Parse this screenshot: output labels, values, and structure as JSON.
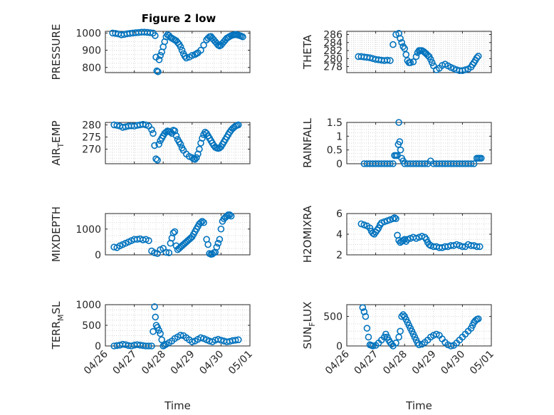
{
  "figure_title": "Figure 2 low",
  "x_axis_label": "Time",
  "x_tick_labels": [
    "04/26",
    "04/27",
    "04/28",
    "04/29",
    "04/30",
    "05/01"
  ],
  "marker_color": "#0072BD",
  "chart_data": [
    {
      "id": "pressure",
      "type": "scatter",
      "title": "Figure 2 low",
      "ylabel": [
        "PRESSURE"
      ],
      "xlabel": "",
      "xlim": [
        0,
        5
      ],
      "ylim": [
        770,
        1010
      ],
      "yticks": [
        800,
        900,
        1000
      ],
      "ytick_labels": [
        "800",
        "900",
        "1000"
      ],
      "x": [
        0.25,
        0.35,
        0.45,
        0.55,
        0.65,
        0.75,
        0.85,
        0.95,
        1.05,
        1.15,
        1.25,
        1.35,
        1.45,
        1.55,
        1.65,
        1.72,
        1.75,
        1.78,
        1.82,
        1.86,
        1.9,
        1.95,
        2.0,
        2.05,
        2.1,
        2.15,
        2.2,
        2.25,
        2.3,
        2.35,
        2.4,
        2.45,
        2.5,
        2.55,
        2.6,
        2.65,
        2.7,
        2.75,
        2.8,
        2.9,
        3.0,
        3.1,
        3.15,
        3.2,
        3.3,
        3.4,
        3.5,
        3.55,
        3.6,
        3.65,
        3.7,
        3.75,
        3.8,
        3.85,
        3.9,
        3.95,
        4.0,
        4.05,
        4.1,
        4.15,
        4.2,
        4.25,
        4.3,
        4.35,
        4.4,
        4.45,
        4.5,
        4.55,
        4.6,
        4.65,
        4.7,
        4.75
      ],
      "y": [
        1000,
        998,
        995,
        990,
        992,
        996,
        998,
        1000,
        1002,
        1003,
        1005,
        1005,
        1004,
        1002,
        1000,
        985,
        860,
        780,
        775,
        845,
        870,
        890,
        920,
        950,
        978,
        990,
        985,
        975,
        970,
        965,
        960,
        955,
        945,
        935,
        920,
        900,
        880,
        865,
        855,
        860,
        870,
        875,
        880,
        885,
        900,
        930,
        960,
        970,
        978,
        980,
        970,
        960,
        950,
        940,
        930,
        925,
        930,
        940,
        950,
        960,
        970,
        975,
        980,
        985,
        988,
        990,
        992,
        990,
        988,
        985,
        982,
        978
      ]
    },
    {
      "id": "theta",
      "type": "scatter",
      "title": "",
      "ylabel": [
        "THETA"
      ],
      "xlabel": "",
      "xlim": [
        0,
        5
      ],
      "ylim": [
        276.5,
        286.8
      ],
      "yticks": [
        278,
        280,
        282,
        284,
        286
      ],
      "ytick_labels": [
        "278",
        "280",
        "282",
        "284",
        "286"
      ],
      "x": [
        0.4,
        0.5,
        0.6,
        0.7,
        0.8,
        0.9,
        1.0,
        1.1,
        1.2,
        1.3,
        1.4,
        1.5,
        1.6,
        1.7,
        1.8,
        1.85,
        1.9,
        1.95,
        2.0,
        2.05,
        2.1,
        2.15,
        2.2,
        2.3,
        2.4,
        2.45,
        2.5,
        2.55,
        2.6,
        2.65,
        2.7,
        2.75,
        2.8,
        2.85,
        2.9,
        2.95,
        3.0,
        3.1,
        3.2,
        3.3,
        3.4,
        3.5,
        3.6,
        3.7,
        3.8,
        3.9,
        4.0,
        4.1,
        4.2,
        4.3,
        4.35,
        4.4,
        4.45,
        4.5,
        4.55
      ],
      "y": [
        280.5,
        280.5,
        280.4,
        280.3,
        280.2,
        280.0,
        279.8,
        279.7,
        279.6,
        279.5,
        279.6,
        279.5,
        283.5,
        286.0,
        286.3,
        285.0,
        284.0,
        283.0,
        282.5,
        281.0,
        279.5,
        279.0,
        279.0,
        279.2,
        280.5,
        281.5,
        282.0,
        282.0,
        282.0,
        281.8,
        281.5,
        281.2,
        280.8,
        280.5,
        279.8,
        279.0,
        278.2,
        277.2,
        277.6,
        278.3,
        278.6,
        278.2,
        277.8,
        277.5,
        277.2,
        277.0,
        277.0,
        277.2,
        277.4,
        277.9,
        278.5,
        279.0,
        279.6,
        280.2,
        280.6
      ]
    },
    {
      "id": "air_temp",
      "type": "scatter",
      "title": "",
      "ylabel": [
        "AIR",
        "T",
        "EMP"
      ],
      "xlabel": "",
      "xlim": [
        0,
        5
      ],
      "ylim": [
        264,
        281
      ],
      "yticks": [
        270,
        275,
        280
      ],
      "ytick_labels": [
        "270",
        "275",
        "280"
      ],
      "x": [
        0.3,
        0.4,
        0.5,
        0.6,
        0.7,
        0.8,
        0.9,
        1.0,
        1.1,
        1.2,
        1.3,
        1.4,
        1.5,
        1.6,
        1.65,
        1.7,
        1.75,
        1.8,
        1.85,
        1.9,
        1.95,
        2.0,
        2.05,
        2.1,
        2.15,
        2.2,
        2.25,
        2.3,
        2.35,
        2.4,
        2.45,
        2.5,
        2.55,
        2.6,
        2.65,
        2.7,
        2.8,
        2.9,
        3.0,
        3.05,
        3.1,
        3.15,
        3.2,
        3.25,
        3.3,
        3.35,
        3.4,
        3.45,
        3.5,
        3.55,
        3.6,
        3.65,
        3.7,
        3.75,
        3.8,
        3.85,
        3.9,
        3.95,
        4.0,
        4.05,
        4.1,
        4.15,
        4.2,
        4.25,
        4.3,
        4.35,
        4.4,
        4.45,
        4.5,
        4.55,
        4.6
      ],
      "y": [
        280.0,
        279.8,
        279.5,
        279.0,
        279.2,
        279.5,
        279.6,
        279.5,
        279.8,
        280.0,
        280.2,
        280.0,
        279.5,
        278.0,
        276.5,
        271.5,
        266.0,
        265.5,
        272.0,
        273.5,
        274.5,
        275.5,
        276.5,
        277.0,
        277.5,
        277.3,
        277.0,
        276.5,
        277.8,
        277.5,
        275.5,
        274.0,
        273.0,
        272.0,
        270.5,
        269.5,
        268.0,
        267.0,
        266.5,
        266.0,
        265.8,
        266.5,
        268.0,
        270.0,
        272.5,
        274.5,
        276.0,
        277.0,
        276.5,
        275.5,
        274.5,
        273.5,
        272.5,
        271.5,
        270.8,
        270.5,
        270.3,
        270.5,
        271.0,
        272.0,
        273.0,
        274.0,
        275.0,
        276.0,
        277.0,
        277.8,
        278.5,
        279.0,
        279.5,
        279.8,
        280.0
      ]
    },
    {
      "id": "rainfall",
      "type": "scatter",
      "title": "",
      "ylabel": [
        "RAINFALL"
      ],
      "xlabel": "",
      "xlim": [
        0,
        5
      ],
      "ylim": [
        0,
        1.5
      ],
      "yticks": [
        0,
        0.5,
        1,
        1.5
      ],
      "ytick_labels": [
        "0",
        "0.5",
        "1",
        "1.5"
      ],
      "x": [
        0.6,
        0.7,
        0.8,
        0.9,
        1.0,
        1.1,
        1.2,
        1.3,
        1.4,
        1.5,
        1.6,
        1.65,
        1.7,
        1.75,
        1.78,
        1.8,
        1.83,
        1.86,
        1.9,
        1.95,
        2.0,
        2.1,
        2.2,
        2.3,
        2.4,
        2.5,
        2.6,
        2.7,
        2.8,
        2.9,
        3.0,
        3.1,
        3.2,
        3.3,
        3.4,
        3.5,
        3.6,
        3.7,
        3.8,
        3.9,
        4.0,
        4.1,
        4.2,
        4.3,
        4.4,
        4.5,
        4.55,
        4.6,
        4.65
      ],
      "y": [
        0,
        0,
        0,
        0,
        0,
        0,
        0,
        0,
        0,
        0,
        0,
        0.3,
        0.3,
        0.3,
        0.7,
        1.5,
        0.8,
        0.5,
        0.2,
        0.1,
        0,
        0,
        0,
        0,
        0,
        0,
        0,
        0,
        0,
        0.1,
        0,
        0,
        0,
        0,
        0,
        0,
        0,
        0,
        0,
        0,
        0,
        0,
        0,
        0,
        0,
        0.2,
        0.2,
        0.2,
        0.2
      ]
    },
    {
      "id": "mixdepth",
      "type": "scatter",
      "title": "",
      "ylabel": [
        "MIXDEPTH"
      ],
      "xlabel": "",
      "xlim": [
        0,
        5
      ],
      "ylim": [
        0,
        1600
      ],
      "yticks": [
        0,
        1000
      ],
      "ytick_labels": [
        "0",
        "1000"
      ],
      "x": [
        0.3,
        0.4,
        0.5,
        0.6,
        0.7,
        0.8,
        0.9,
        1.0,
        1.1,
        1.2,
        1.3,
        1.4,
        1.5,
        1.6,
        1.7,
        1.8,
        1.9,
        2.0,
        2.1,
        2.2,
        2.25,
        2.3,
        2.35,
        2.4,
        2.45,
        2.5,
        2.55,
        2.6,
        2.65,
        2.7,
        2.75,
        2.8,
        2.85,
        2.9,
        2.95,
        3.0,
        3.05,
        3.1,
        3.15,
        3.2,
        3.25,
        3.3,
        3.35,
        3.4,
        3.5,
        3.55,
        3.6,
        3.65,
        3.7,
        3.75,
        3.8,
        3.85,
        3.9,
        3.95,
        4.0,
        4.05,
        4.1,
        4.15,
        4.2,
        4.25,
        4.3,
        4.35
      ],
      "y": [
        300,
        280,
        350,
        400,
        450,
        500,
        550,
        600,
        600,
        620,
        580,
        600,
        550,
        150,
        80,
        50,
        200,
        250,
        100,
        80,
        450,
        650,
        850,
        900,
        350,
        200,
        250,
        300,
        350,
        400,
        450,
        500,
        550,
        600,
        650,
        700,
        800,
        900,
        1000,
        1100,
        1200,
        1250,
        1300,
        1250,
        600,
        400,
        50,
        20,
        30,
        80,
        100,
        300,
        450,
        600,
        1000,
        1300,
        1400,
        1450,
        1500,
        1550,
        1550,
        1500
      ]
    },
    {
      "id": "h2omixra",
      "type": "scatter",
      "title": "",
      "ylabel": [
        "H2OMIXRA"
      ],
      "xlabel": "",
      "xlim": [
        0,
        5
      ],
      "ylim": [
        2,
        6
      ],
      "yticks": [
        2,
        4,
        6
      ],
      "ytick_labels": [
        "2",
        "4",
        "6"
      ],
      "x": [
        0.5,
        0.6,
        0.7,
        0.8,
        0.85,
        0.9,
        0.95,
        1.0,
        1.05,
        1.1,
        1.15,
        1.2,
        1.3,
        1.4,
        1.5,
        1.6,
        1.65,
        1.7,
        1.75,
        1.8,
        1.85,
        1.9,
        1.95,
        2.0,
        2.05,
        2.1,
        2.2,
        2.3,
        2.4,
        2.5,
        2.6,
        2.7,
        2.75,
        2.8,
        2.85,
        2.9,
        3.0,
        3.1,
        3.2,
        3.3,
        3.4,
        3.5,
        3.6,
        3.7,
        3.8,
        3.9,
        4.0,
        4.1,
        4.2,
        4.3,
        4.4,
        4.5,
        4.6
      ],
      "y": [
        5.0,
        4.9,
        4.8,
        4.6,
        4.3,
        4.1,
        4.0,
        4.2,
        4.4,
        4.6,
        4.9,
        5.1,
        5.2,
        5.3,
        5.4,
        5.5,
        5.6,
        5.5,
        3.9,
        3.4,
        3.2,
        3.3,
        3.4,
        3.5,
        3.3,
        3.5,
        3.6,
        3.7,
        3.6,
        3.7,
        3.8,
        3.7,
        3.5,
        3.2,
        3.0,
        2.9,
        2.8,
        2.8,
        2.7,
        2.7,
        2.8,
        2.8,
        2.9,
        2.9,
        3.0,
        2.9,
        2.8,
        2.8,
        3.0,
        2.9,
        2.9,
        2.8,
        2.8
      ]
    },
    {
      "id": "terr_msl",
      "type": "scatter",
      "title": "",
      "ylabel": [
        "TERR",
        "M",
        "SL"
      ],
      "xlabel": "Time",
      "xlim": [
        0,
        5
      ],
      "ylim": [
        0,
        1000
      ],
      "yticks": [
        0,
        500,
        1000
      ],
      "ytick_labels": [
        "0",
        "500",
        "1000"
      ],
      "x": [
        0.3,
        0.4,
        0.5,
        0.6,
        0.7,
        0.8,
        0.9,
        1.0,
        1.1,
        1.2,
        1.3,
        1.4,
        1.5,
        1.6,
        1.65,
        1.7,
        1.73,
        1.76,
        1.8,
        1.85,
        1.9,
        1.95,
        2.0,
        2.05,
        2.1,
        2.2,
        2.3,
        2.4,
        2.5,
        2.6,
        2.7,
        2.8,
        2.9,
        3.0,
        3.1,
        3.2,
        3.3,
        3.4,
        3.5,
        3.6,
        3.7,
        3.8,
        3.9,
        4.0,
        4.1,
        4.2,
        4.3,
        4.4,
        4.5,
        4.6
      ],
      "y": [
        0,
        10,
        20,
        40,
        30,
        10,
        0,
        20,
        30,
        20,
        10,
        0,
        0,
        0,
        350,
        950,
        700,
        500,
        450,
        380,
        300,
        150,
        0,
        20,
        40,
        80,
        120,
        180,
        220,
        260,
        250,
        200,
        150,
        100,
        120,
        160,
        200,
        180,
        150,
        120,
        100,
        140,
        160,
        140,
        120,
        100,
        110,
        130,
        140,
        150
      ]
    },
    {
      "id": "sun_flux",
      "type": "scatter",
      "title": "",
      "ylabel": [
        "SUN",
        "F",
        "LUX"
      ],
      "xlabel": "Time",
      "xlim": [
        0,
        5
      ],
      "ylim": [
        0,
        700
      ],
      "yticks": [
        0,
        500
      ],
      "ytick_labels": [
        "0",
        "500"
      ],
      "x": [
        0.55,
        0.6,
        0.65,
        0.7,
        0.75,
        0.8,
        0.85,
        0.9,
        1.0,
        1.1,
        1.2,
        1.3,
        1.35,
        1.4,
        1.45,
        1.5,
        1.55,
        1.6,
        1.7,
        1.8,
        1.85,
        1.9,
        1.95,
        2.0,
        2.05,
        2.1,
        2.15,
        2.2,
        2.25,
        2.3,
        2.35,
        2.4,
        2.45,
        2.5,
        2.6,
        2.7,
        2.8,
        2.9,
        3.0,
        3.1,
        3.2,
        3.3,
        3.4,
        3.5,
        3.6,
        3.7,
        3.8,
        3.9,
        4.0,
        4.1,
        4.2,
        4.3,
        4.35,
        4.4,
        4.45,
        4.5,
        4.55
      ],
      "y": [
        650,
        580,
        500,
        300,
        150,
        20,
        10,
        0,
        10,
        50,
        100,
        150,
        200,
        150,
        100,
        60,
        30,
        0,
        50,
        150,
        250,
        500,
        530,
        500,
        450,
        400,
        350,
        300,
        250,
        200,
        150,
        100,
        50,
        20,
        30,
        60,
        100,
        150,
        180,
        200,
        180,
        120,
        60,
        20,
        0,
        10,
        50,
        100,
        150,
        200,
        250,
        300,
        350,
        400,
        430,
        450,
        460
      ]
    }
  ]
}
